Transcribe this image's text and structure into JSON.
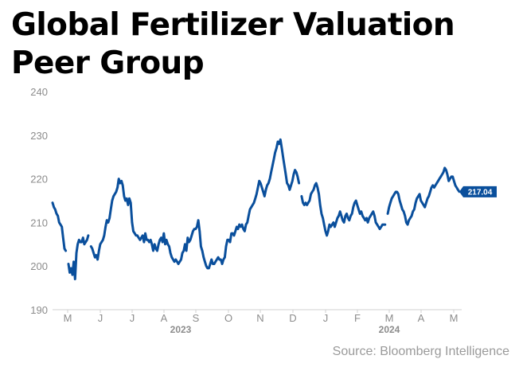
{
  "chart_data": {
    "type": "line",
    "title": "Global Fertilizer Valuation Peer Group",
    "source": "Source: Bloomberg Intelligence",
    "ylim": [
      190,
      240
    ],
    "y_ticks": [
      190,
      200,
      210,
      220,
      230,
      240
    ],
    "x_tick_labels": [
      "M",
      "J",
      "J",
      "A",
      "S",
      "O",
      "N",
      "D",
      "J",
      "F",
      "M",
      "A",
      "M"
    ],
    "year_labels": [
      "2023",
      "2024"
    ],
    "last_value_label": "217.04",
    "grid": false,
    "line_color": "#0a4f9c",
    "series": [
      {
        "values": [
          214.5,
          213.5,
          213,
          212,
          211.5,
          210,
          209.5,
          209,
          206.5,
          204,
          203.5,
          null,
          200.5,
          198.5,
          199.5,
          198,
          201,
          197,
          203,
          205,
          206,
          205.5,
          205.5,
          206.5,
          205,
          205.5,
          206,
          207,
          null,
          204.5,
          204,
          203,
          202,
          202.5,
          201.5,
          203.5,
          205,
          205.5,
          206,
          207,
          209,
          210.5,
          210,
          211,
          213,
          215,
          216,
          216.5,
          217,
          218,
          220,
          219,
          219.5,
          218.5,
          216,
          215,
          215.5,
          214,
          215.5,
          214.5,
          210,
          208,
          207.5,
          207,
          207,
          206.5,
          206,
          206.5,
          207,
          205.5,
          207.5,
          206,
          206,
          205.5,
          206,
          205,
          203.5,
          205,
          204,
          203.5,
          205,
          206,
          206.5,
          205.5,
          207.5,
          205,
          206,
          205,
          204.5,
          203,
          202,
          201.5,
          201,
          201.5,
          201,
          200.5,
          201,
          201.5,
          203,
          203.5,
          205,
          203.5,
          206.5,
          205.5,
          206,
          207,
          208,
          208.5,
          208.5,
          209,
          210.5,
          208,
          204.5,
          203.5,
          202,
          201,
          200,
          199.5,
          199.5,
          200.5,
          201.5,
          200.5,
          200.5,
          201,
          201.5,
          202,
          201.5,
          201.5,
          200.5,
          201.5,
          202,
          204.5,
          206,
          206,
          205.5,
          207.5,
          207.5,
          207,
          208,
          209,
          208.5,
          209.5,
          209,
          209.5,
          208.5,
          208,
          209.5,
          210,
          211.5,
          213,
          213.5,
          214,
          214.5,
          215.5,
          216.5,
          218,
          219.5,
          219,
          218,
          217,
          216,
          217.5,
          218.5,
          219,
          220,
          221.5,
          223,
          224.5,
          226,
          227,
          228.5,
          228,
          229,
          227,
          225,
          223,
          221,
          219,
          218.5,
          217.5,
          218.5,
          219.5,
          221,
          222,
          221.5,
          220.5,
          219,
          null,
          216,
          214.5,
          214,
          214.5,
          214,
          214.5,
          215,
          216.5,
          217,
          217.5,
          218.5,
          219,
          218,
          216.5,
          214,
          212,
          211,
          209.5,
          208,
          207,
          208,
          209.5,
          209,
          209.5,
          210,
          209,
          210,
          211,
          211.5,
          212.5,
          211.5,
          210.5,
          210,
          211.5,
          212,
          211,
          210.5,
          211.5,
          212,
          213.5,
          214.5,
          215,
          214,
          213,
          212,
          212.5,
          211.5,
          211,
          210.5,
          211,
          210,
          211,
          211.5,
          212,
          212.5,
          211.5,
          210,
          209.5,
          209,
          208.5,
          209,
          209.5,
          209.5,
          209.5,
          null,
          212,
          213.5,
          214.5,
          215.5,
          216,
          216.5,
          217,
          217,
          216.5,
          215,
          214,
          213,
          212.5,
          211.5,
          210,
          209.5,
          210.5,
          211,
          211.5,
          212.5,
          213,
          214.5,
          215.5,
          216,
          216.5,
          215,
          214.5,
          214,
          213.5,
          214.5,
          215.5,
          216,
          217,
          218,
          218.5,
          218,
          218.5,
          219,
          219.5,
          220,
          220.5,
          221,
          221.5,
          222.5,
          222,
          221,
          219.5,
          220,
          220.5,
          220.5,
          219.5,
          218.5,
          218,
          217.5,
          217.04
        ]
      }
    ]
  }
}
